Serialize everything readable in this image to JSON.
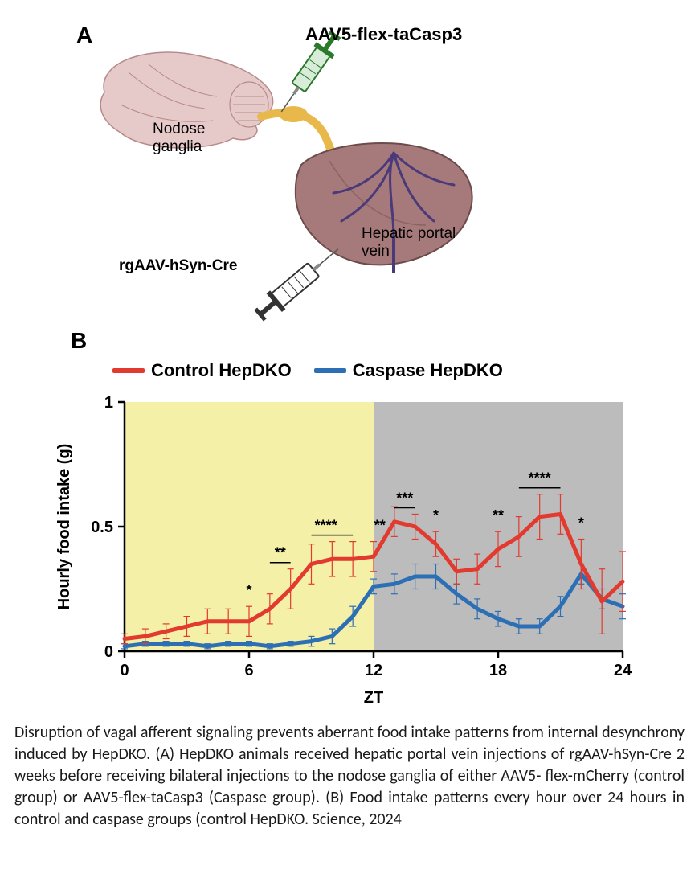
{
  "panelA": {
    "label": "A",
    "anno": {
      "aav5": "AAV5-flex-taCasp3",
      "nodose": "Nodose\nganglia",
      "hpv": "Hepatic portal\nvein",
      "rgaav": "rgAAV-hSyn-Cre"
    },
    "colors": {
      "brain_fill": "#e6c9c9",
      "brain_stroke": "#b88a8a",
      "nerve": "#e8b94a",
      "liver_fill": "#a67a7a",
      "liver_stroke": "#6d4b4b",
      "liver_vein": "#4a3a7a",
      "syringe_top_body": "#d9ecd9",
      "syringe_top_accent": "#2a7a2a",
      "syringe_bot_body": "#ffffff",
      "syringe_bot_accent": "#333333"
    }
  },
  "panelB": {
    "label": "B",
    "legend": {
      "control": {
        "label": "Control HepDKO",
        "color": "#e23a2f"
      },
      "caspase": {
        "label": "Caspase HepDKO",
        "color": "#2d6fb5"
      }
    },
    "chart": {
      "type": "line",
      "xlabel": "ZT",
      "ylabel": "Hourly food intake (g)",
      "xlim": [
        0,
        24
      ],
      "ylim": [
        0,
        1
      ],
      "xtick_step": 6,
      "ytick_step": 0.5,
      "background_left": "#f5f0a8",
      "background_right": "#bcbcbc",
      "axis_color": "#000000",
      "axis_fontsize": 20,
      "tick_fontsize": 20,
      "title_fontsize": 20,
      "line_width": 5,
      "err_width": 1.2,
      "control": {
        "color": "#e23a2f",
        "x": [
          0,
          1,
          2,
          3,
          4,
          5,
          6,
          7,
          8,
          9,
          10,
          11,
          12,
          13,
          14,
          15,
          16,
          17,
          18,
          19,
          20,
          21,
          22,
          23,
          24
        ],
        "y": [
          0.05,
          0.06,
          0.08,
          0.1,
          0.12,
          0.12,
          0.12,
          0.17,
          0.25,
          0.35,
          0.37,
          0.37,
          0.38,
          0.52,
          0.5,
          0.43,
          0.32,
          0.33,
          0.41,
          0.46,
          0.54,
          0.55,
          0.35,
          0.2,
          0.28
        ],
        "err": [
          0.02,
          0.03,
          0.03,
          0.04,
          0.05,
          0.05,
          0.06,
          0.06,
          0.08,
          0.08,
          0.07,
          0.07,
          0.06,
          0.06,
          0.05,
          0.05,
          0.05,
          0.06,
          0.07,
          0.08,
          0.09,
          0.08,
          0.1,
          0.13,
          0.12
        ]
      },
      "caspase": {
        "color": "#2d6fb5",
        "x": [
          0,
          1,
          2,
          3,
          4,
          5,
          6,
          7,
          8,
          9,
          10,
          11,
          12,
          13,
          14,
          15,
          16,
          17,
          18,
          19,
          20,
          21,
          22,
          23,
          24
        ],
        "y": [
          0.02,
          0.03,
          0.03,
          0.03,
          0.02,
          0.03,
          0.03,
          0.02,
          0.03,
          0.04,
          0.06,
          0.14,
          0.26,
          0.27,
          0.3,
          0.3,
          0.23,
          0.17,
          0.13,
          0.1,
          0.1,
          0.18,
          0.31,
          0.21,
          0.18
        ],
        "err": [
          0.01,
          0.01,
          0.01,
          0.01,
          0.01,
          0.01,
          0.01,
          0.01,
          0.01,
          0.02,
          0.03,
          0.04,
          0.03,
          0.04,
          0.05,
          0.05,
          0.04,
          0.04,
          0.03,
          0.03,
          0.03,
          0.04,
          0.04,
          0.04,
          0.05
        ]
      },
      "sig": [
        {
          "x": 6,
          "label": "*"
        },
        {
          "x": 7.5,
          "label": "**",
          "bar": [
            7,
            8
          ]
        },
        {
          "x": 9.7,
          "label": "****",
          "bar": [
            9,
            11
          ]
        },
        {
          "x": 12.3,
          "label": "**"
        },
        {
          "x": 13.5,
          "label": "***",
          "bar": [
            13,
            14
          ]
        },
        {
          "x": 15,
          "label": "*"
        },
        {
          "x": 18,
          "label": "**"
        },
        {
          "x": 20,
          "label": "****",
          "bar": [
            19,
            21
          ]
        },
        {
          "x": 22,
          "label": "*"
        }
      ]
    }
  },
  "caption": "Disruption of vagal afferent signaling prevents aberrant food intake patterns from internal desynchrony induced by HepDKO. (A) HepDKO animals received hepatic portal vein injections of rgAAV-hSyn-Cre 2 weeks before receiving bilateral injections to the nodose ganglia of either AAV5- flex-mCherry (control group) or AAV5-flex-taCasp3 (Caspase group). (B) Food intake patterns every hour over 24 hours in control and caspase groups (control HepDKO. Science, 2024"
}
